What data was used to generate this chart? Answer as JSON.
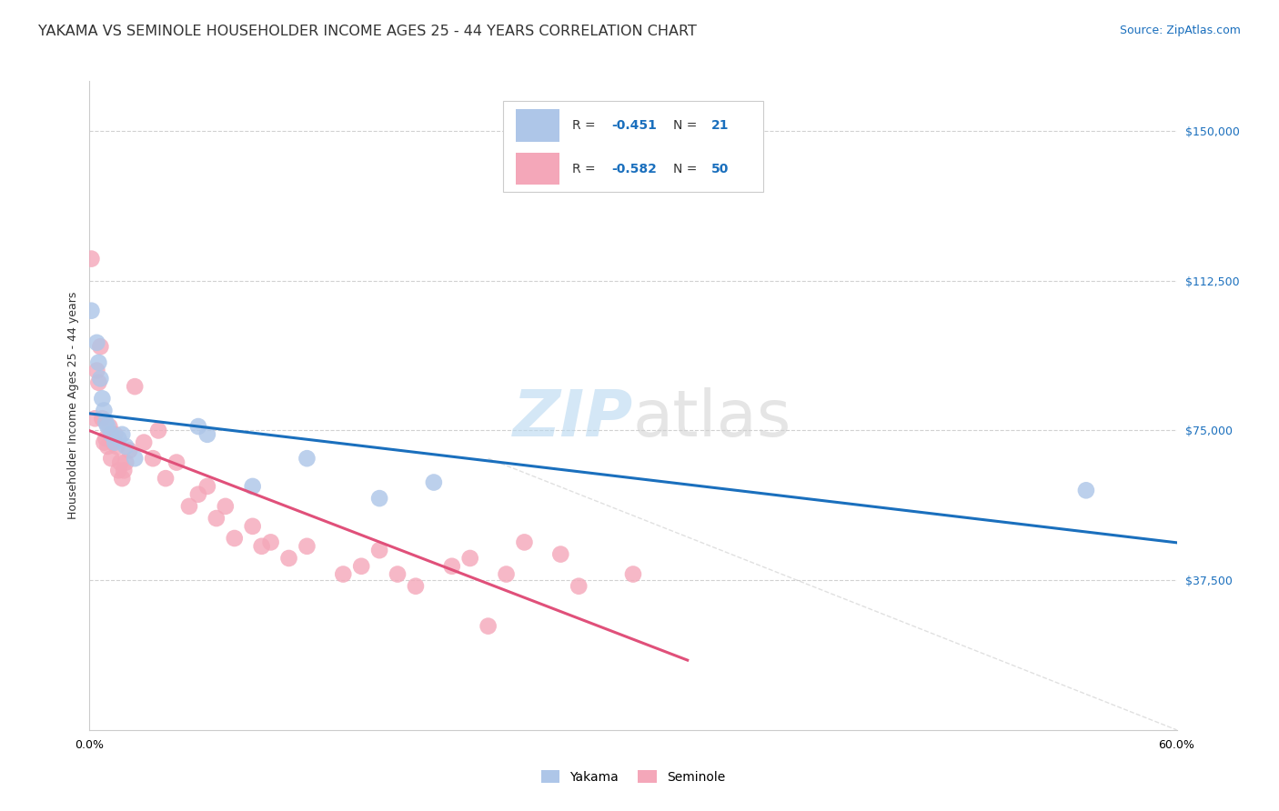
{
  "title": "YAKAMA VS SEMINOLE HOUSEHOLDER INCOME AGES 25 - 44 YEARS CORRELATION CHART",
  "source": "Source: ZipAtlas.com",
  "ylabel": "Householder Income Ages 25 - 44 years",
  "ytick_labels": [
    "$37,500",
    "$75,000",
    "$112,500",
    "$150,000"
  ],
  "ytick_values": [
    37500,
    75000,
    112500,
    150000
  ],
  "ylim": [
    0,
    162500
  ],
  "xlim": [
    0.0,
    0.6
  ],
  "r_yakama": "-0.451",
  "n_yakama": "21",
  "r_seminole": "-0.582",
  "n_seminole": "50",
  "yakama_color": "#aec6e8",
  "seminole_color": "#f4a7b9",
  "yakama_line_color": "#1a6fbd",
  "seminole_line_color": "#e0507a",
  "watermark_zip": "ZIP",
  "watermark_atlas": "atlas",
  "yakama_x": [
    0.001,
    0.004,
    0.005,
    0.006,
    0.007,
    0.008,
    0.009,
    0.01,
    0.012,
    0.014,
    0.016,
    0.018,
    0.02,
    0.025,
    0.06,
    0.065,
    0.09,
    0.12,
    0.16,
    0.19,
    0.55
  ],
  "yakama_y": [
    105000,
    97000,
    92000,
    88000,
    83000,
    80000,
    77000,
    76000,
    74000,
    72000,
    73000,
    74000,
    71000,
    68000,
    76000,
    74000,
    61000,
    68000,
    58000,
    62000,
    60000
  ],
  "seminole_x": [
    0.001,
    0.003,
    0.004,
    0.005,
    0.006,
    0.007,
    0.008,
    0.009,
    0.01,
    0.011,
    0.012,
    0.013,
    0.014,
    0.015,
    0.016,
    0.017,
    0.018,
    0.019,
    0.02,
    0.022,
    0.025,
    0.03,
    0.035,
    0.038,
    0.042,
    0.048,
    0.055,
    0.06,
    0.065,
    0.07,
    0.075,
    0.08,
    0.09,
    0.095,
    0.1,
    0.11,
    0.12,
    0.14,
    0.15,
    0.16,
    0.17,
    0.18,
    0.2,
    0.21,
    0.22,
    0.23,
    0.24,
    0.26,
    0.27,
    0.3
  ],
  "seminole_y": [
    118000,
    78000,
    90000,
    87000,
    96000,
    78000,
    72000,
    73000,
    71000,
    76000,
    68000,
    72000,
    74000,
    71000,
    65000,
    67000,
    63000,
    65000,
    67000,
    70000,
    86000,
    72000,
    68000,
    75000,
    63000,
    67000,
    56000,
    59000,
    61000,
    53000,
    56000,
    48000,
    51000,
    46000,
    47000,
    43000,
    46000,
    39000,
    41000,
    45000,
    39000,
    36000,
    41000,
    43000,
    26000,
    39000,
    47000,
    44000,
    36000,
    39000
  ],
  "background_color": "#ffffff",
  "grid_color": "#cccccc",
  "title_fontsize": 11.5,
  "source_fontsize": 9,
  "axis_label_fontsize": 9,
  "tick_label_fontsize": 9,
  "legend_fontsize": 10,
  "watermark_fontsize": 52
}
